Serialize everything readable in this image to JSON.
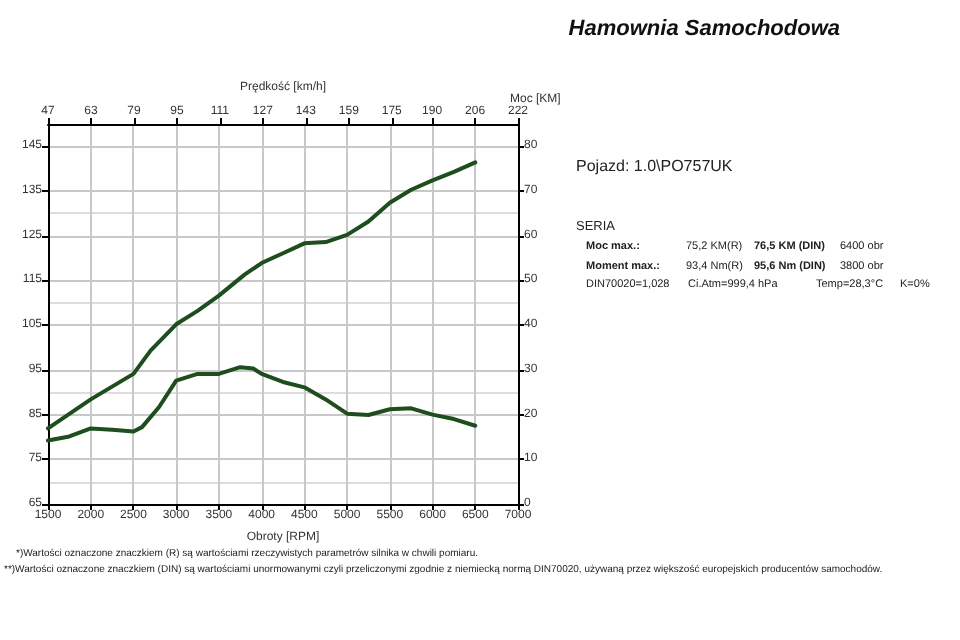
{
  "chart_data": {
    "type": "line",
    "title": "Hamownia Samochodowa",
    "xlabel": "Obroty [RPM]",
    "x2label": "Prędkość [km/h]",
    "y2label": "Moc [KM]",
    "x": [
      1500,
      1750,
      2000,
      2250,
      2500,
      2600,
      2800,
      3000,
      3250,
      3500,
      3750,
      3900,
      4000,
      4250,
      4500,
      4750,
      5000,
      5250,
      5500,
      5750,
      6000,
      6250,
      6500
    ],
    "series": [
      {
        "color": "#1e4d1e",
        "values": [
          79.2,
          80.1,
          81.9,
          81.6,
          81.2,
          82.2,
          86.7,
          92.6,
          94.1,
          94.1,
          95.6,
          95.3,
          94.1,
          92.3,
          91.1,
          88.4,
          85.2,
          84.9,
          86.2,
          86.4,
          85.0,
          84.0,
          82.5
        ]
      },
      {
        "color": "#1e4d1e",
        "axis": "y2",
        "x": [
          1500,
          2000,
          2500,
          2700,
          3000,
          3250,
          3500,
          3800,
          4000,
          4250,
          4500,
          4750,
          5000,
          5250,
          5500,
          5750,
          6000,
          6250,
          6500
        ],
        "values": [
          16.9,
          23.4,
          29.1,
          34.3,
          40.2,
          43.2,
          46.6,
          51.3,
          53.9,
          56.1,
          58.3,
          58.6,
          60.2,
          63.2,
          67.4,
          70.3,
          72.4,
          74.3,
          76.4
        ]
      }
    ],
    "xlim": [
      1500,
      7000
    ],
    "xticks": [
      1500,
      2000,
      2500,
      3000,
      3500,
      4000,
      4500,
      5000,
      5500,
      6000,
      6500,
      7000
    ],
    "x2lim": [
      47,
      222
    ],
    "x2ticks": [
      47,
      63,
      79,
      95,
      111,
      127,
      143,
      159,
      175,
      190,
      206,
      222
    ],
    "ylim": [
      65,
      150
    ],
    "yticks": [
      65,
      75,
      85,
      95,
      105,
      115,
      125,
      135,
      145
    ],
    "y2lim": [
      0,
      85
    ],
    "y2ticks": [
      0,
      10,
      20,
      30,
      40,
      50,
      60,
      70,
      80
    ],
    "grid": true,
    "marker": "none",
    "line_style": "solid",
    "annotations": [
      "Pojazd: 1.0\\PO757UK",
      "SERIA",
      "Moc max.:",
      "75,2 KM(R)",
      "76,5 KM (DIN)",
      "6400 obr",
      "Moment max.:",
      "93,4 Nm(R)",
      "95,6 Nm (DIN)",
      "3800 obr",
      "DIN70020=1,028",
      "Ci.Atm=999,4 hPa",
      "Temp=28,3°C",
      "K=0%",
      "*)Wartości oznaczone znaczkiem (R) są wartościami rzeczywistych parametrów silnika w chwili pomiaru.",
      "**)Wartości oznaczone znaczkiem (DIN) są wartościami unormowanymi czyli przeliczonymi zgodnie z niemiecką normą DIN70020, używaną przez większość europejskich producentów samochodów."
    ]
  }
}
